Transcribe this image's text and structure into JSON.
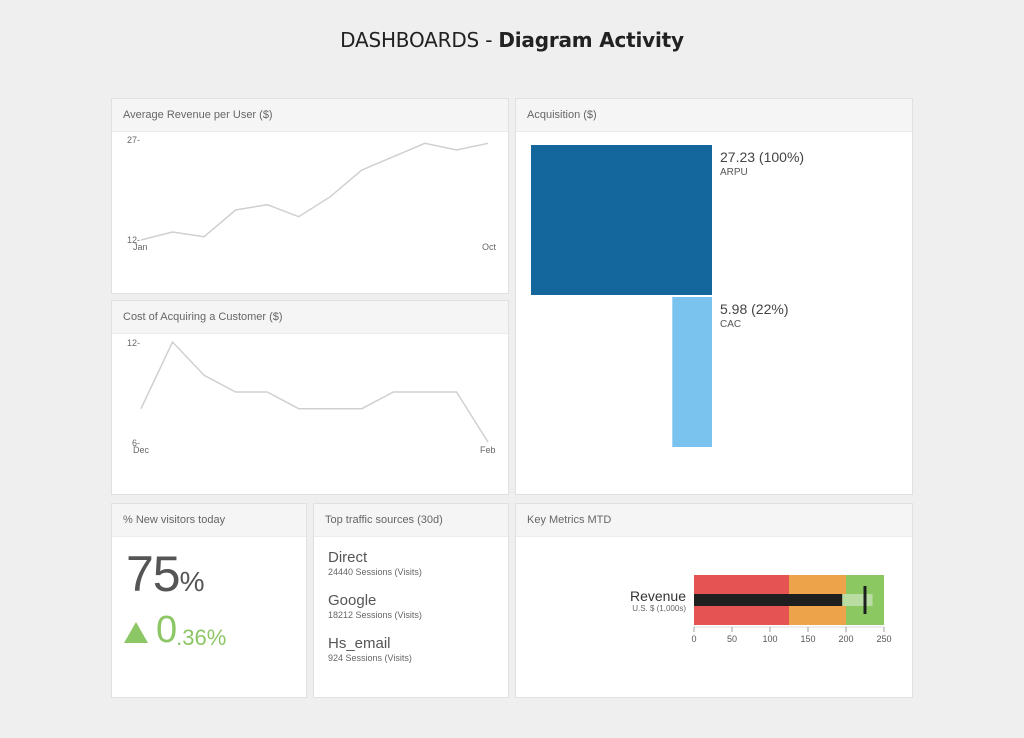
{
  "header": {
    "title_prefix": "DASHBOARDS - ",
    "title_bold": "Diagram Activity"
  },
  "arpu": {
    "title": "Average Revenue per User ($)",
    "y_max_label": "27-",
    "y_min_label": "12-",
    "x_start_label": "Jan",
    "x_end_label": "Oct"
  },
  "cac": {
    "title": "Cost of Acquiring a Customer ($)",
    "y_max_label": "12-",
    "y_min_label": "6-",
    "x_start_label": "Dec",
    "x_end_label": "Feb"
  },
  "acquisition": {
    "title": "Acquisition ($)",
    "arpu_value": "27.23 (100%)",
    "arpu_label": "ARPU",
    "cac_value": "5.98 (22%)",
    "cac_label": "CAC",
    "colors": {
      "arpu": "#14679c",
      "cac": "#7bc3ef"
    }
  },
  "new_visitors": {
    "title": "% New visitors today",
    "value": "75",
    "value_unit": "%",
    "delta_int": "0",
    "delta_frac": ".36%",
    "delta_color": "#8cc665"
  },
  "traffic": {
    "title": "Top traffic sources (30d)",
    "sources": [
      {
        "name": "Direct",
        "sub": "24440 Sessions (Visits)"
      },
      {
        "name": "Google",
        "sub": "18212 Sessions (Visits)"
      },
      {
        "name": "Hs_email",
        "sub": "924 Sessions (Visits)"
      }
    ]
  },
  "key_metrics": {
    "title": "Key Metrics MTD",
    "label": "Revenue",
    "sublabel": "U.S. $ (1,000s)",
    "ranges": [
      125,
      200,
      250
    ],
    "measure": 195,
    "projected": 235,
    "marker": 225,
    "ticks": [
      "0",
      "50",
      "100",
      "150",
      "200",
      "250"
    ],
    "colors": {
      "poor": "#e55353",
      "ok": "#eda349",
      "good": "#8bc862",
      "measure": "#1f1f1f",
      "projected": "#b8dca2",
      "marker": "#1f1f1f"
    }
  },
  "chart_data": [
    {
      "type": "line",
      "title": "Average Revenue per User ($)",
      "x": [
        "Jan",
        "",
        "",
        "",
        "",
        "",
        "",
        "",
        "",
        "",
        "",
        "Oct"
      ],
      "values": [
        12,
        13.2,
        12.5,
        16.5,
        17.3,
        15.5,
        18.5,
        22.5,
        24.5,
        26.5,
        25.5,
        26.5
      ],
      "ylim": [
        12,
        27
      ]
    },
    {
      "type": "line",
      "title": "Cost of Acquiring a Customer ($)",
      "x": [
        "Dec",
        "",
        "",
        "",
        "",
        "",
        "",
        "",
        "",
        "",
        "",
        "Feb"
      ],
      "values": [
        8,
        12,
        10,
        9,
        9,
        8,
        8,
        8,
        9,
        9,
        9,
        6
      ],
      "ylim": [
        6,
        12
      ]
    },
    {
      "type": "bar",
      "title": "Acquisition ($)",
      "categories": [
        "ARPU",
        "CAC"
      ],
      "values": [
        27.23,
        5.98
      ]
    },
    {
      "type": "bar",
      "title": "Key Metrics MTD",
      "categories": [
        "Revenue"
      ],
      "values": [
        195
      ],
      "xlim": [
        0,
        250
      ]
    }
  ]
}
